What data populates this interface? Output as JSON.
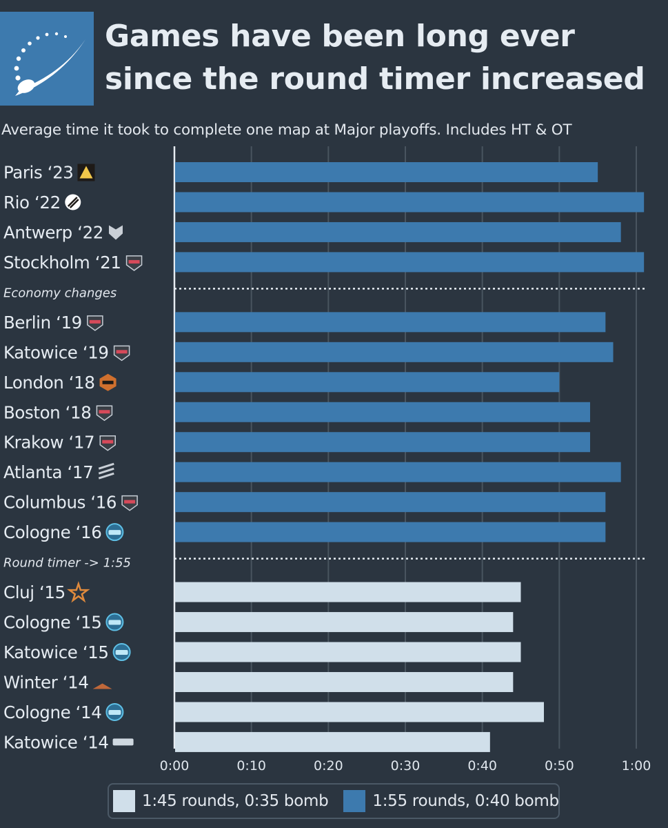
{
  "header": {
    "title_line1": "Games have been long ever",
    "title_line2": "since the round timer increased",
    "subtitle": "Average time it took to complete one map at Major playoffs. Includes HT & OT",
    "logo_icon": "stylized-star-swoosh-icon"
  },
  "colors": {
    "background": "#2b3540",
    "series_155": "#3d7aae",
    "series_145": "#d0dfea",
    "grid": "#49545f"
  },
  "chart_data": {
    "type": "bar",
    "orientation": "horizontal",
    "title": "Games have been long ever since the round timer increased",
    "subtitle": "Average time it took to complete one map at Major playoffs. Includes HT & OT",
    "xlim_seconds": [
      0,
      3660
    ],
    "x_ticks": [
      "0:00",
      "0:10",
      "0:20",
      "0:30",
      "0:40",
      "0:50",
      "1:00"
    ],
    "x_ticks_seconds": [
      0,
      600,
      1200,
      1800,
      2400,
      3000,
      3600
    ],
    "x_unit": "h:mm",
    "grid": true,
    "legend_position": "bottom",
    "legend": [
      {
        "label": "1:45 rounds, 0:35 bomb",
        "color": "#d0dfea"
      },
      {
        "label": "1:55 rounds, 0:40 bomb",
        "color": "#3d7aae"
      }
    ],
    "rows": [
      {
        "kind": "bar",
        "label": "Paris ‘23",
        "icon": "blast-logo-icon",
        "value": "0:55",
        "series": 1
      },
      {
        "kind": "bar",
        "label": "Rio ‘22",
        "icon": "iem-logo-icon",
        "value": "1:01",
        "series": 1
      },
      {
        "kind": "bar",
        "label": "Antwerp ‘22",
        "icon": "pgl-logo-icon",
        "value": "0:58",
        "series": 1
      },
      {
        "kind": "bar",
        "label": "Stockholm ‘21",
        "icon": "major-logo-icon",
        "value": "1:01",
        "series": 1
      },
      {
        "kind": "divider",
        "label": "Economy changes"
      },
      {
        "kind": "bar",
        "label": "Berlin ‘19",
        "icon": "starladder-major-logo-icon",
        "value": "0:56",
        "series": 1
      },
      {
        "kind": "bar",
        "label": "Katowice ‘19",
        "icon": "intel-extreme-masters-logo-icon",
        "value": "0:57",
        "series": 1
      },
      {
        "kind": "bar",
        "label": "London ‘18",
        "icon": "faceit-major-logo-icon",
        "value": "0:50",
        "series": 1
      },
      {
        "kind": "bar",
        "label": "Boston ‘18",
        "icon": "eleague-major-logo-icon",
        "value": "0:54",
        "series": 1
      },
      {
        "kind": "bar",
        "label": "Krakow ‘17",
        "icon": "pgl-krakow-logo-icon",
        "value": "0:54",
        "series": 1
      },
      {
        "kind": "bar",
        "label": "Atlanta ‘17",
        "icon": "eleague-logo-icon",
        "value": "0:58",
        "series": 1
      },
      {
        "kind": "bar",
        "label": "Columbus ‘16",
        "icon": "mlg-major-logo-icon",
        "value": "0:56",
        "series": 1
      },
      {
        "kind": "bar",
        "label": "Cologne ‘16",
        "icon": "esl-one-logo-icon",
        "value": "0:56",
        "series": 1
      },
      {
        "kind": "divider",
        "label": "Round timer -> 1:55"
      },
      {
        "kind": "bar",
        "label": "Cluj ‘15",
        "icon": "dreamhack-star-logo-icon",
        "value": "0:45",
        "series": 0
      },
      {
        "kind": "bar",
        "label": "Cologne ‘15",
        "icon": "esl-one-logo-icon",
        "value": "0:44",
        "series": 0
      },
      {
        "kind": "bar",
        "label": "Katowice ‘15",
        "icon": "esl-one-logo-icon",
        "value": "0:45",
        "series": 0
      },
      {
        "kind": "bar",
        "label": "Winter ‘14",
        "icon": "dreamhack-winter-logo-icon",
        "value": "0:44",
        "series": 0
      },
      {
        "kind": "bar",
        "label": "Cologne ‘14",
        "icon": "esl-one-logo-icon",
        "value": "0:48",
        "series": 0
      },
      {
        "kind": "bar",
        "label": "Katowice ‘14",
        "icon": "esl-logo-icon",
        "value": "0:41",
        "series": 0
      }
    ]
  }
}
